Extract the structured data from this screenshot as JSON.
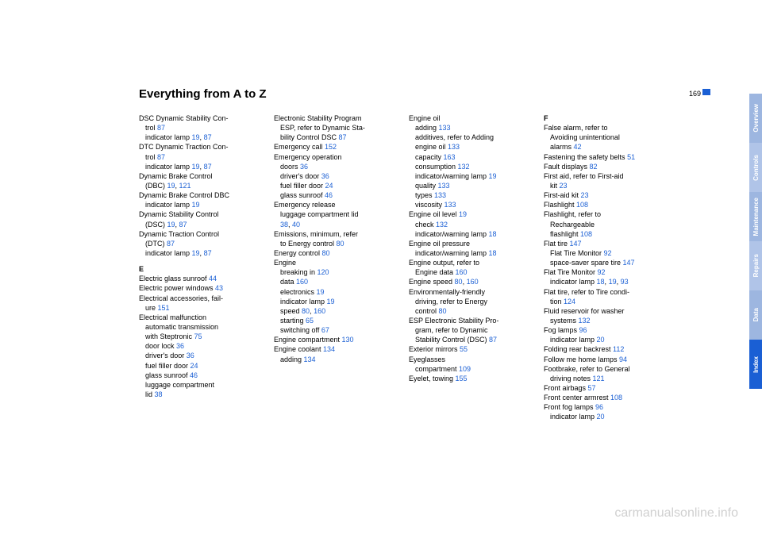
{
  "page": {
    "title": "Everything from A to Z",
    "number": "169"
  },
  "tabs": [
    {
      "label": "Overview",
      "bg": "#9db6e0"
    },
    {
      "label": "Controls",
      "bg": "#b0c4e8"
    },
    {
      "label": "Maintenance",
      "bg": "#9db6e0"
    },
    {
      "label": "Repairs",
      "bg": "#b0c4e8"
    },
    {
      "label": "Data",
      "bg": "#9db6e0"
    },
    {
      "label": "Index",
      "bg": "#1a5fd4"
    }
  ],
  "columns": [
    [
      {
        "t": "entry",
        "text": "DSC Dynamic Stability Con-"
      },
      {
        "t": "sub",
        "frags": [
          {
            "s": "trol "
          },
          {
            "s": "87",
            "pg": true
          }
        ]
      },
      {
        "t": "sub",
        "frags": [
          {
            "s": "indicator lamp "
          },
          {
            "s": "19",
            "pg": true
          },
          {
            "s": ", "
          },
          {
            "s": "87",
            "pg": true
          }
        ]
      },
      {
        "t": "entry",
        "text": "DTC Dynamic Traction Con-"
      },
      {
        "t": "sub",
        "frags": [
          {
            "s": "trol "
          },
          {
            "s": "87",
            "pg": true
          }
        ]
      },
      {
        "t": "sub",
        "frags": [
          {
            "s": "indicator lamp "
          },
          {
            "s": "19",
            "pg": true
          },
          {
            "s": ", "
          },
          {
            "s": "87",
            "pg": true
          }
        ]
      },
      {
        "t": "entry",
        "text": "Dynamic Brake Control"
      },
      {
        "t": "sub",
        "frags": [
          {
            "s": "(DBC) "
          },
          {
            "s": "19",
            "pg": true
          },
          {
            "s": ", "
          },
          {
            "s": "121",
            "pg": true
          }
        ]
      },
      {
        "t": "entry",
        "text": "Dynamic Brake Control DBC"
      },
      {
        "t": "sub",
        "frags": [
          {
            "s": "indicator lamp "
          },
          {
            "s": "19",
            "pg": true
          }
        ]
      },
      {
        "t": "entry",
        "text": "Dynamic Stability Control"
      },
      {
        "t": "sub",
        "frags": [
          {
            "s": "(DSC) "
          },
          {
            "s": "19",
            "pg": true
          },
          {
            "s": ", "
          },
          {
            "s": "87",
            "pg": true
          }
        ]
      },
      {
        "t": "entry",
        "text": "Dynamic Traction Control"
      },
      {
        "t": "sub",
        "frags": [
          {
            "s": "(DTC) "
          },
          {
            "s": "87",
            "pg": true
          }
        ]
      },
      {
        "t": "sub",
        "frags": [
          {
            "s": "indicator lamp "
          },
          {
            "s": "19",
            "pg": true
          },
          {
            "s": ", "
          },
          {
            "s": "87",
            "pg": true
          }
        ]
      },
      {
        "t": "letter",
        "text": "E"
      },
      {
        "t": "entry",
        "frags": [
          {
            "s": "Electric glass sunroof "
          },
          {
            "s": "44",
            "pg": true
          }
        ]
      },
      {
        "t": "entry",
        "frags": [
          {
            "s": "Electric power windows "
          },
          {
            "s": "43",
            "pg": true
          }
        ]
      },
      {
        "t": "entry",
        "text": "Electrical accessories, fail-"
      },
      {
        "t": "sub",
        "frags": [
          {
            "s": "ure "
          },
          {
            "s": "151",
            "pg": true
          }
        ]
      },
      {
        "t": "entry",
        "text": "Electrical malfunction"
      },
      {
        "t": "sub",
        "text": "automatic transmission"
      },
      {
        "t": "sub",
        "frags": [
          {
            "s": "with Steptronic "
          },
          {
            "s": "75",
            "pg": true
          }
        ]
      },
      {
        "t": "sub",
        "frags": [
          {
            "s": "door lock "
          },
          {
            "s": "36",
            "pg": true
          }
        ]
      },
      {
        "t": "sub",
        "frags": [
          {
            "s": "driver's door "
          },
          {
            "s": "36",
            "pg": true
          }
        ]
      },
      {
        "t": "sub",
        "frags": [
          {
            "s": "fuel filler door "
          },
          {
            "s": "24",
            "pg": true
          }
        ]
      },
      {
        "t": "sub",
        "frags": [
          {
            "s": "glass sunroof "
          },
          {
            "s": "46",
            "pg": true
          }
        ]
      },
      {
        "t": "sub",
        "text": "luggage compartment"
      },
      {
        "t": "sub",
        "frags": [
          {
            "s": "lid "
          },
          {
            "s": "38",
            "pg": true
          }
        ]
      }
    ],
    [
      {
        "t": "entry",
        "text": "Electronic Stability Program"
      },
      {
        "t": "sub",
        "text": "ESP, refer to Dynamic Sta-"
      },
      {
        "t": "sub",
        "frags": [
          {
            "s": "bility Control DSC "
          },
          {
            "s": "87",
            "pg": true
          }
        ]
      },
      {
        "t": "entry",
        "frags": [
          {
            "s": "Emergency call "
          },
          {
            "s": "152",
            "pg": true
          }
        ]
      },
      {
        "t": "entry",
        "text": "Emergency operation"
      },
      {
        "t": "sub",
        "frags": [
          {
            "s": "doors "
          },
          {
            "s": "36",
            "pg": true
          }
        ]
      },
      {
        "t": "sub",
        "frags": [
          {
            "s": "driver's door "
          },
          {
            "s": "36",
            "pg": true
          }
        ]
      },
      {
        "t": "sub",
        "frags": [
          {
            "s": "fuel filler door "
          },
          {
            "s": "24",
            "pg": true
          }
        ]
      },
      {
        "t": "sub",
        "frags": [
          {
            "s": "glass sunroof "
          },
          {
            "s": "46",
            "pg": true
          }
        ]
      },
      {
        "t": "entry",
        "text": "Emergency release"
      },
      {
        "t": "sub",
        "text": "luggage compartment lid"
      },
      {
        "t": "sub",
        "frags": [
          {
            "s": "38",
            "pg": true
          },
          {
            "s": ", "
          },
          {
            "s": "40",
            "pg": true
          }
        ]
      },
      {
        "t": "entry",
        "text": "Emissions, minimum, refer"
      },
      {
        "t": "sub",
        "frags": [
          {
            "s": "to Energy control "
          },
          {
            "s": "80",
            "pg": true
          }
        ]
      },
      {
        "t": "entry",
        "frags": [
          {
            "s": "Energy control "
          },
          {
            "s": "80",
            "pg": true
          }
        ]
      },
      {
        "t": "entry",
        "text": "Engine"
      },
      {
        "t": "sub",
        "frags": [
          {
            "s": "breaking in "
          },
          {
            "s": "120",
            "pg": true
          }
        ]
      },
      {
        "t": "sub",
        "frags": [
          {
            "s": "data "
          },
          {
            "s": "160",
            "pg": true
          }
        ]
      },
      {
        "t": "sub",
        "frags": [
          {
            "s": "electronics "
          },
          {
            "s": "19",
            "pg": true
          }
        ]
      },
      {
        "t": "sub",
        "frags": [
          {
            "s": "indicator lamp "
          },
          {
            "s": "19",
            "pg": true
          }
        ]
      },
      {
        "t": "sub",
        "frags": [
          {
            "s": "speed "
          },
          {
            "s": "80",
            "pg": true
          },
          {
            "s": ", "
          },
          {
            "s": "160",
            "pg": true
          }
        ]
      },
      {
        "t": "sub",
        "frags": [
          {
            "s": "starting "
          },
          {
            "s": "65",
            "pg": true
          }
        ]
      },
      {
        "t": "sub",
        "frags": [
          {
            "s": "switching off "
          },
          {
            "s": "67",
            "pg": true
          }
        ]
      },
      {
        "t": "entry",
        "frags": [
          {
            "s": "Engine compartment "
          },
          {
            "s": "130",
            "pg": true
          }
        ]
      },
      {
        "t": "entry",
        "frags": [
          {
            "s": "Engine coolant "
          },
          {
            "s": "134",
            "pg": true
          }
        ]
      },
      {
        "t": "sub",
        "frags": [
          {
            "s": "adding "
          },
          {
            "s": "134",
            "pg": true
          }
        ]
      }
    ],
    [
      {
        "t": "entry",
        "text": "Engine oil"
      },
      {
        "t": "sub",
        "frags": [
          {
            "s": "adding "
          },
          {
            "s": "133",
            "pg": true
          }
        ]
      },
      {
        "t": "sub",
        "text": "additives, refer to Adding"
      },
      {
        "t": "sub",
        "frags": [
          {
            "s": "engine oil "
          },
          {
            "s": "133",
            "pg": true
          }
        ]
      },
      {
        "t": "sub",
        "frags": [
          {
            "s": "capacity "
          },
          {
            "s": "163",
            "pg": true
          }
        ]
      },
      {
        "t": "sub",
        "frags": [
          {
            "s": "consumption "
          },
          {
            "s": "132",
            "pg": true
          }
        ]
      },
      {
        "t": "sub",
        "frags": [
          {
            "s": "indicator/warning lamp "
          },
          {
            "s": "19",
            "pg": true
          }
        ]
      },
      {
        "t": "sub",
        "frags": [
          {
            "s": "quality "
          },
          {
            "s": "133",
            "pg": true
          }
        ]
      },
      {
        "t": "sub",
        "frags": [
          {
            "s": "types "
          },
          {
            "s": "133",
            "pg": true
          }
        ]
      },
      {
        "t": "sub",
        "frags": [
          {
            "s": "viscosity "
          },
          {
            "s": "133",
            "pg": true
          }
        ]
      },
      {
        "t": "entry",
        "frags": [
          {
            "s": "Engine oil level "
          },
          {
            "s": "19",
            "pg": true
          }
        ]
      },
      {
        "t": "sub",
        "frags": [
          {
            "s": "check "
          },
          {
            "s": "132",
            "pg": true
          }
        ]
      },
      {
        "t": "sub",
        "frags": [
          {
            "s": "indicator/warning lamp "
          },
          {
            "s": "18",
            "pg": true
          }
        ]
      },
      {
        "t": "entry",
        "text": "Engine oil pressure"
      },
      {
        "t": "sub",
        "frags": [
          {
            "s": "indicator/warning lamp "
          },
          {
            "s": "18",
            "pg": true
          }
        ]
      },
      {
        "t": "entry",
        "text": "Engine output, refer to"
      },
      {
        "t": "sub",
        "frags": [
          {
            "s": "Engine data "
          },
          {
            "s": "160",
            "pg": true
          }
        ]
      },
      {
        "t": "entry",
        "frags": [
          {
            "s": "Engine speed "
          },
          {
            "s": "80",
            "pg": true
          },
          {
            "s": ", "
          },
          {
            "s": "160",
            "pg": true
          }
        ]
      },
      {
        "t": "entry",
        "text": "Environmentally-friendly"
      },
      {
        "t": "sub",
        "text": "driving, refer to Energy"
      },
      {
        "t": "sub",
        "frags": [
          {
            "s": "control "
          },
          {
            "s": "80",
            "pg": true
          }
        ]
      },
      {
        "t": "entry",
        "text": "ESP Electronic Stability Pro-"
      },
      {
        "t": "sub",
        "text": "gram, refer to Dynamic"
      },
      {
        "t": "sub",
        "frags": [
          {
            "s": "Stability Control (DSC) "
          },
          {
            "s": "87",
            "pg": true
          }
        ]
      },
      {
        "t": "entry",
        "frags": [
          {
            "s": "Exterior mirrors "
          },
          {
            "s": "55",
            "pg": true
          }
        ]
      },
      {
        "t": "entry",
        "text": "Eyeglasses"
      },
      {
        "t": "sub",
        "frags": [
          {
            "s": "compartment "
          },
          {
            "s": "109",
            "pg": true
          }
        ]
      },
      {
        "t": "entry",
        "frags": [
          {
            "s": "Eyelet, towing "
          },
          {
            "s": "155",
            "pg": true
          }
        ]
      }
    ],
    [
      {
        "t": "letter-first",
        "text": "F"
      },
      {
        "t": "entry",
        "text": "False alarm, refer to"
      },
      {
        "t": "sub",
        "text": "Avoiding unintentional"
      },
      {
        "t": "sub",
        "frags": [
          {
            "s": "alarms "
          },
          {
            "s": "42",
            "pg": true
          }
        ]
      },
      {
        "t": "entry",
        "frags": [
          {
            "s": "Fastening the safety belts "
          },
          {
            "s": "51",
            "pg": true
          }
        ]
      },
      {
        "t": "entry",
        "frags": [
          {
            "s": "Fault displays "
          },
          {
            "s": "82",
            "pg": true
          }
        ]
      },
      {
        "t": "entry",
        "text": "First aid, refer to First-aid"
      },
      {
        "t": "sub",
        "frags": [
          {
            "s": "kit "
          },
          {
            "s": "23",
            "pg": true
          }
        ]
      },
      {
        "t": "entry",
        "frags": [
          {
            "s": "First-aid kit "
          },
          {
            "s": "23",
            "pg": true
          }
        ]
      },
      {
        "t": "entry",
        "frags": [
          {
            "s": "Flashlight "
          },
          {
            "s": "108",
            "pg": true
          }
        ]
      },
      {
        "t": "entry",
        "text": "Flashlight, refer to"
      },
      {
        "t": "sub",
        "text": "Rechargeable"
      },
      {
        "t": "sub",
        "frags": [
          {
            "s": "flashlight "
          },
          {
            "s": "108",
            "pg": true
          }
        ]
      },
      {
        "t": "entry",
        "frags": [
          {
            "s": "Flat tire "
          },
          {
            "s": "147",
            "pg": true
          }
        ]
      },
      {
        "t": "sub",
        "frags": [
          {
            "s": "Flat Tire Monitor "
          },
          {
            "s": "92",
            "pg": true
          }
        ]
      },
      {
        "t": "sub",
        "frags": [
          {
            "s": "space-saver spare tire "
          },
          {
            "s": "147",
            "pg": true
          }
        ]
      },
      {
        "t": "entry",
        "frags": [
          {
            "s": "Flat Tire Monitor "
          },
          {
            "s": "92",
            "pg": true
          }
        ]
      },
      {
        "t": "sub",
        "frags": [
          {
            "s": "indicator lamp "
          },
          {
            "s": "18",
            "pg": true
          },
          {
            "s": ", "
          },
          {
            "s": "19",
            "pg": true
          },
          {
            "s": ", "
          },
          {
            "s": "93",
            "pg": true
          }
        ]
      },
      {
        "t": "entry",
        "text": "Flat tire, refer to Tire condi-"
      },
      {
        "t": "sub",
        "frags": [
          {
            "s": "tion "
          },
          {
            "s": "124",
            "pg": true
          }
        ]
      },
      {
        "t": "entry",
        "text": "Fluid reservoir for washer"
      },
      {
        "t": "sub",
        "frags": [
          {
            "s": "systems "
          },
          {
            "s": "132",
            "pg": true
          }
        ]
      },
      {
        "t": "entry",
        "frags": [
          {
            "s": "Fog lamps "
          },
          {
            "s": "96",
            "pg": true
          }
        ]
      },
      {
        "t": "sub",
        "frags": [
          {
            "s": "indicator lamp "
          },
          {
            "s": "20",
            "pg": true
          }
        ]
      },
      {
        "t": "entry",
        "frags": [
          {
            "s": "Folding rear backrest "
          },
          {
            "s": "112",
            "pg": true
          }
        ]
      },
      {
        "t": "entry",
        "frags": [
          {
            "s": "Follow me home lamps "
          },
          {
            "s": "94",
            "pg": true
          }
        ]
      },
      {
        "t": "entry",
        "text": "Footbrake, refer to General"
      },
      {
        "t": "sub",
        "frags": [
          {
            "s": "driving notes "
          },
          {
            "s": "121",
            "pg": true
          }
        ]
      },
      {
        "t": "entry",
        "frags": [
          {
            "s": "Front airbags "
          },
          {
            "s": "57",
            "pg": true
          }
        ]
      },
      {
        "t": "entry",
        "frags": [
          {
            "s": "Front center armrest "
          },
          {
            "s": "108",
            "pg": true
          }
        ]
      },
      {
        "t": "entry",
        "frags": [
          {
            "s": "Front fog lamps "
          },
          {
            "s": "96",
            "pg": true
          }
        ]
      },
      {
        "t": "sub",
        "frags": [
          {
            "s": "indicator lamp "
          },
          {
            "s": "20",
            "pg": true
          }
        ]
      }
    ]
  ],
  "watermark": "carmanualsonline.info"
}
